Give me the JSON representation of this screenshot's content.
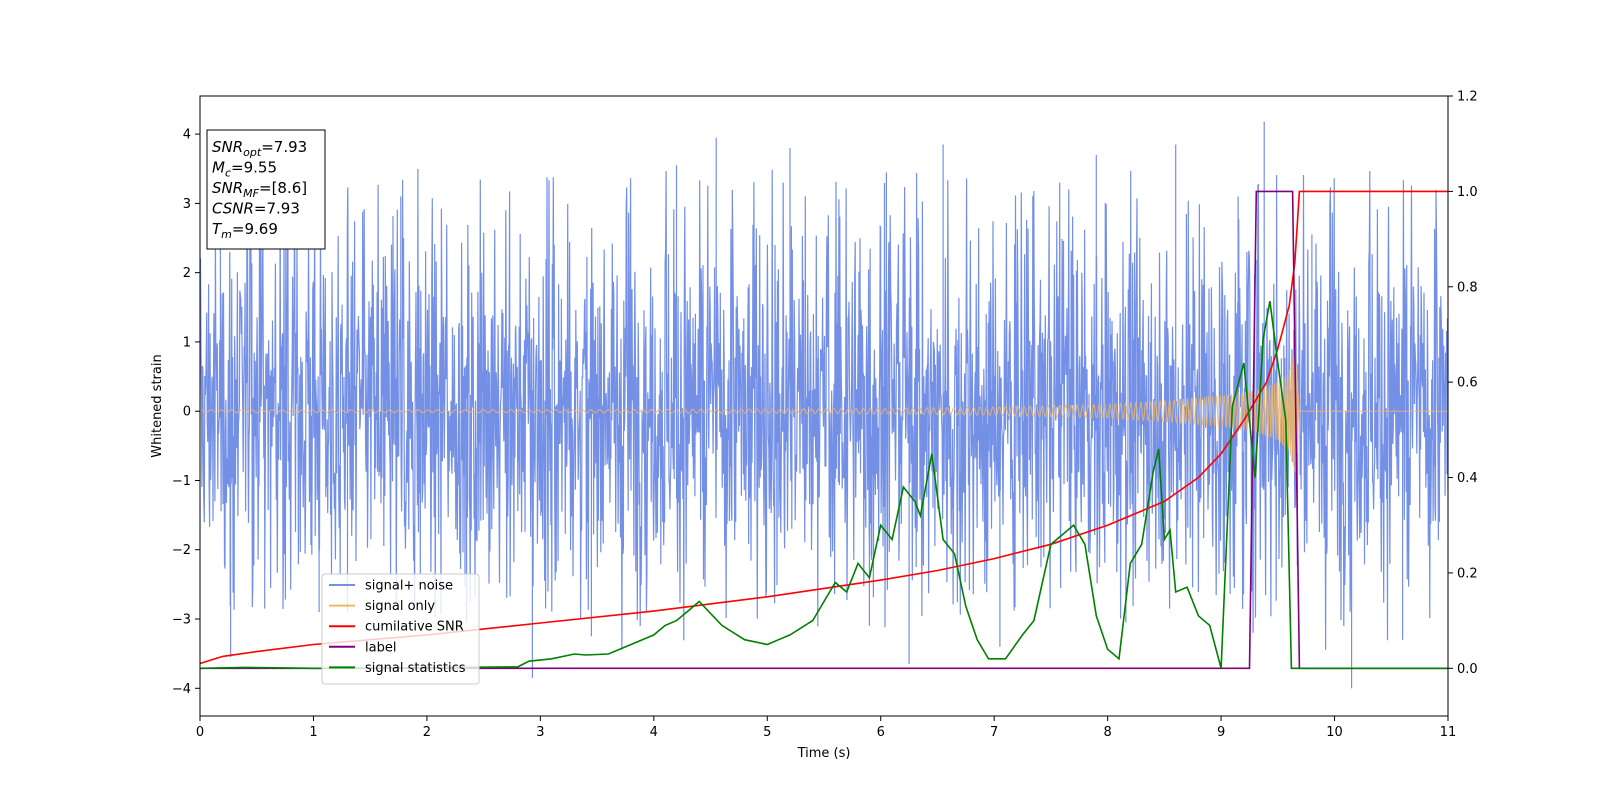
{
  "chart_data": {
    "type": "line",
    "xlabel": "Time (s)",
    "ylabel": "Whitened strain",
    "xlim": [
      0,
      11
    ],
    "ylim": [
      -4.4,
      4.55
    ],
    "y2lim": [
      -0.1,
      1.2
    ],
    "x_ticks": [
      "0",
      "1",
      "2",
      "3",
      "4",
      "5",
      "6",
      "7",
      "8",
      "9",
      "10",
      "11"
    ],
    "y_ticks": [
      "4",
      "3",
      "2",
      "1",
      "0",
      "−1",
      "−2",
      "−3",
      "−4"
    ],
    "y2_ticks": [
      "1.2",
      "1.0",
      "0.8",
      "0.6",
      "0.4",
      "0.2",
      "0.0"
    ],
    "grid": false,
    "legend_position": "lower-left",
    "annotation": {
      "lines": [
        {
          "var": "SNR",
          "sub": "opt",
          "value": "=7.93"
        },
        {
          "var": "M",
          "sub": "c",
          "value": "=9.55"
        },
        {
          "var": "SNR",
          "sub": "MF",
          "value": "=[8.6]"
        },
        {
          "var": "CSNR",
          "sub": "",
          "value": "=7.93"
        },
        {
          "var": "T",
          "sub": "m",
          "value": "=9.69"
        }
      ]
    },
    "series": [
      {
        "name": "signal+ noise",
        "axis": "left",
        "color": "#7390e6",
        "kind": "noise",
        "typical_range": [
          -1.9,
          2.4
        ],
        "extremes": [
          [
            0.18,
            2.85
          ],
          [
            0.27,
            -3.55
          ],
          [
            0.57,
            -2.85
          ],
          [
            1.05,
            -2.9
          ],
          [
            1.3,
            -2.9
          ],
          [
            1.77,
            3.1
          ],
          [
            2.35,
            -3.05
          ],
          [
            2.93,
            -3.85
          ],
          [
            3.45,
            -3.25
          ],
          [
            4.2,
            3.55
          ],
          [
            4.55,
            3.95
          ],
          [
            5.2,
            3.8
          ],
          [
            5.9,
            -3.1
          ],
          [
            6.05,
            3.45
          ],
          [
            6.25,
            -3.65
          ],
          [
            6.55,
            3.85
          ],
          [
            7.05,
            -3.4
          ],
          [
            7.9,
            3.7
          ],
          [
            8.6,
            3.85
          ],
          [
            9.15,
            3.1
          ],
          [
            9.38,
            4.18
          ],
          [
            9.8,
            2.55
          ],
          [
            10.15,
            -4.0
          ],
          [
            10.6,
            -3.3
          ]
        ]
      },
      {
        "name": "signal only",
        "axis": "left",
        "color": "#f2b765",
        "kind": "chirp",
        "amplitude": [
          [
            0,
            0.02
          ],
          [
            3,
            0.02
          ],
          [
            5,
            0.03
          ],
          [
            6,
            0.04
          ],
          [
            7,
            0.06
          ],
          [
            8,
            0.1
          ],
          [
            8.5,
            0.15
          ],
          [
            9,
            0.22
          ],
          [
            9.3,
            0.3
          ],
          [
            9.5,
            0.42
          ],
          [
            9.6,
            0.58
          ],
          [
            9.66,
            0.95
          ],
          [
            9.69,
            0.0
          ],
          [
            11,
            0.0
          ]
        ]
      },
      {
        "name": "cumilative SNR",
        "axis": "right",
        "color": "#ff0000",
        "x": [
          0,
          0.2,
          0.5,
          1,
          2,
          3,
          4,
          5,
          6,
          6.5,
          7,
          7.5,
          8,
          8.5,
          8.8,
          9,
          9.2,
          9.4,
          9.5,
          9.6,
          9.65,
          9.69,
          11
        ],
        "y": [
          0.01,
          0.025,
          0.035,
          0.05,
          0.07,
          0.095,
          0.12,
          0.15,
          0.185,
          0.205,
          0.23,
          0.26,
          0.3,
          0.35,
          0.4,
          0.45,
          0.52,
          0.6,
          0.67,
          0.76,
          0.85,
          1.0,
          1.0
        ]
      },
      {
        "name": "label",
        "axis": "right",
        "color": "#800080",
        "x": [
          0,
          9.25,
          9.31,
          9.63,
          9.69,
          11
        ],
        "y": [
          0,
          0,
          1,
          1,
          0,
          0
        ]
      },
      {
        "name": "signal statistics",
        "axis": "right",
        "color": "#008000",
        "x": [
          0,
          0.4,
          1.0,
          1.8,
          2.8,
          2.9,
          3.1,
          3.3,
          3.4,
          3.6,
          3.8,
          4.0,
          4.1,
          4.2,
          4.3,
          4.4,
          4.6,
          4.8,
          5.0,
          5.1,
          5.2,
          5.4,
          5.5,
          5.6,
          5.7,
          5.8,
          5.9,
          6.0,
          6.1,
          6.2,
          6.3,
          6.35,
          6.45,
          6.55,
          6.65,
          6.75,
          6.85,
          6.95,
          7.1,
          7.25,
          7.35,
          7.5,
          7.6,
          7.7,
          7.8,
          7.9,
          8.0,
          8.1,
          8.2,
          8.3,
          8.4,
          8.45,
          8.5,
          8.55,
          8.6,
          8.7,
          8.8,
          8.9,
          9.0,
          9.1,
          9.2,
          9.3,
          9.37,
          9.43,
          9.5,
          9.57,
          9.62,
          9.67,
          9.72,
          9.8,
          10.0,
          11.0
        ],
        "y": [
          0.0,
          0.002,
          0.0,
          0.001,
          0.003,
          0.015,
          0.02,
          0.03,
          0.028,
          0.03,
          0.05,
          0.07,
          0.09,
          0.1,
          0.12,
          0.14,
          0.09,
          0.06,
          0.05,
          0.06,
          0.07,
          0.1,
          0.14,
          0.18,
          0.16,
          0.22,
          0.19,
          0.3,
          0.27,
          0.38,
          0.35,
          0.32,
          0.45,
          0.27,
          0.24,
          0.13,
          0.06,
          0.02,
          0.02,
          0.07,
          0.1,
          0.26,
          0.28,
          0.3,
          0.26,
          0.11,
          0.04,
          0.02,
          0.22,
          0.26,
          0.41,
          0.46,
          0.27,
          0.29,
          0.16,
          0.17,
          0.11,
          0.09,
          0.0,
          0.55,
          0.64,
          0.4,
          0.69,
          0.77,
          0.64,
          0.52,
          0.0,
          0.0,
          0.0,
          0.0,
          0.0,
          0.0
        ]
      }
    ]
  }
}
